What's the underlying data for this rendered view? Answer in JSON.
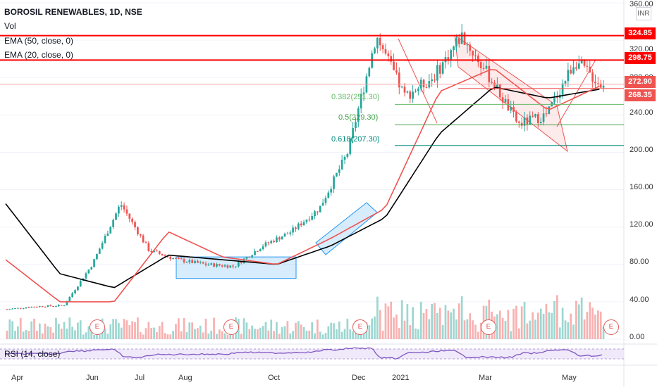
{
  "header": {
    "title": "BOROSIL RENEWABLES, 1D, NSE",
    "vol_label": "Vol",
    "ema50_label": "EMA (50, close, 0)",
    "ema20_label": "EMA (20, close, 0)",
    "currency": "INR"
  },
  "price_tags": [
    {
      "value": "324.85",
      "color": "#ff0000"
    },
    {
      "value": "298.75",
      "color": "#ff0000"
    },
    {
      "value": "272.90",
      "color": "#ef5350"
    },
    {
      "value": "268.35",
      "color": "#ef5350"
    }
  ],
  "fib_labels": [
    {
      "text": "0.382(251.30)",
      "color": "#66bb6a"
    },
    {
      "text": "0.5(229.30)",
      "color": "#43a047"
    },
    {
      "text": "0.618(207.30)",
      "color": "#00897b"
    }
  ],
  "rsi_label": "RSI (14, close)",
  "earnings_marker": "E",
  "colors": {
    "up": "#26a69a",
    "down": "#ef5350",
    "ema20": "#ef5350",
    "ema50": "#000000",
    "resistance": "#ff0000",
    "rsi": "#7e57c2",
    "rsi_band": "#e9e0f8"
  },
  "chart_data": {
    "type": "candlestick",
    "title": "BOROSIL RENEWABLES, 1D, NSE",
    "ylim": [
      0,
      360
    ],
    "y_ticks": [
      "360.00",
      "320.00",
      "280.00",
      "240.00",
      "200.00",
      "160.00",
      "120.00",
      "80.00",
      "40.00",
      "0.00"
    ],
    "x_ticks": [
      "Apr",
      "Jun",
      "Jul",
      "Aug",
      "Oct",
      "Dec",
      "2021",
      "Mar",
      "May"
    ],
    "horizontal_levels": [
      324.85,
      298.75,
      272.9,
      268.35
    ],
    "fibonacci": [
      {
        "ratio": 0.382,
        "price": 251.3
      },
      {
        "ratio": 0.5,
        "price": 229.3
      },
      {
        "ratio": 0.618,
        "price": 207.3
      }
    ],
    "close_path": [
      {
        "date": "Apr",
        "close": 32
      },
      {
        "date": "May",
        "close": 35
      },
      {
        "date": "Jun",
        "close": 36
      },
      {
        "date": "Jun",
        "close": 80
      },
      {
        "date": "Jul",
        "close": 145
      },
      {
        "date": "Jul",
        "close": 95
      },
      {
        "date": "Aug",
        "close": 85
      },
      {
        "date": "Sep",
        "close": 80
      },
      {
        "date": "Oct",
        "close": 78
      },
      {
        "date": "Oct",
        "close": 100
      },
      {
        "date": "Nov",
        "close": 115
      },
      {
        "date": "Dec",
        "close": 140
      },
      {
        "date": "Dec",
        "close": 200
      },
      {
        "date": "Dec",
        "close": 325
      },
      {
        "date": "2021",
        "close": 260
      },
      {
        "date": "2021",
        "close": 280
      },
      {
        "date": "Feb",
        "close": 325
      },
      {
        "date": "Mar",
        "close": 280
      },
      {
        "date": "Apr",
        "close": 230
      },
      {
        "date": "May",
        "close": 240
      },
      {
        "date": "May",
        "close": 298
      },
      {
        "date": "May",
        "close": 270
      }
    ],
    "ema20_path": [
      {
        "date": "Apr",
        "value": 85
      },
      {
        "date": "May",
        "value": 40
      },
      {
        "date": "Jun",
        "value": 40
      },
      {
        "date": "Jul",
        "value": 115
      },
      {
        "date": "Aug",
        "value": 88
      },
      {
        "date": "Oct",
        "value": 80
      },
      {
        "date": "Nov",
        "value": 108
      },
      {
        "date": "Dec",
        "value": 140
      },
      {
        "date": "2021",
        "value": 265
      },
      {
        "date": "Feb",
        "value": 290
      },
      {
        "date": "Apr",
        "value": 245
      },
      {
        "date": "May",
        "value": 272
      }
    ],
    "ema50_path": [
      {
        "date": "Apr",
        "value": 145
      },
      {
        "date": "May",
        "value": 70
      },
      {
        "date": "Jun",
        "value": 55
      },
      {
        "date": "Jul",
        "value": 90
      },
      {
        "date": "Aug",
        "value": 85
      },
      {
        "date": "Oct",
        "value": 80
      },
      {
        "date": "Nov",
        "value": 100
      },
      {
        "date": "Dec",
        "value": 130
      },
      {
        "date": "2021",
        "value": 220
      },
      {
        "date": "Feb",
        "value": 270
      },
      {
        "date": "Apr",
        "value": 258
      },
      {
        "date": "May",
        "value": 268
      }
    ]
  }
}
